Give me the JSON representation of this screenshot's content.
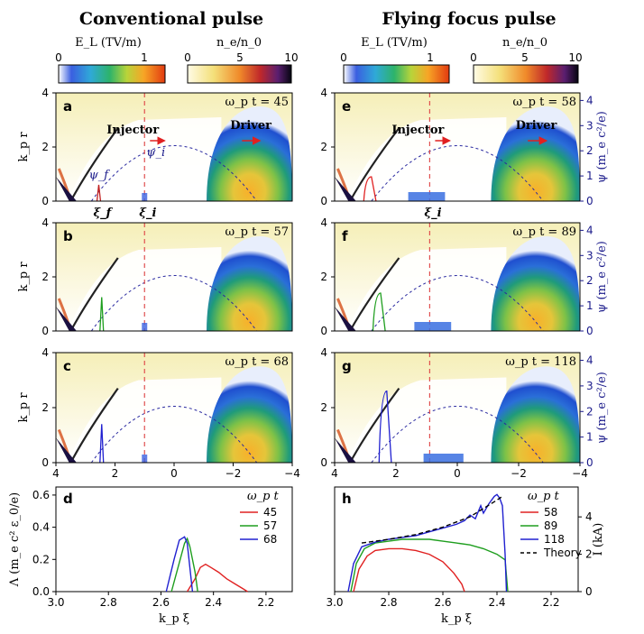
{
  "titles": {
    "left": "Conventional pulse",
    "right": "Flying focus pulse"
  },
  "colorbars": {
    "EL_label": "E_L (TV/m)",
    "ne_label": "n_e/n_0",
    "EL_ticks": [
      "0",
      "1"
    ],
    "ne_ticks": [
      "0",
      "5",
      "10"
    ]
  },
  "map_axes": {
    "ylabel": "k_p r",
    "psi_label": "ψ (m_e c²/e)",
    "yticks": [
      "0",
      "2",
      "4"
    ],
    "psi_ticks": [
      "0",
      "1",
      "2",
      "3",
      "4"
    ],
    "xticks": [
      "4",
      "2",
      "0",
      "−2",
      "−4"
    ]
  },
  "annotations": {
    "injector": "Injector",
    "driver": "Driver",
    "psi_i": "ψ_i",
    "psi_f": "ψ_f",
    "xi_f": "ξ_f",
    "xi_i": "ξ_i"
  },
  "panels": [
    {
      "label": "a",
      "time": "ω_p t = 45"
    },
    {
      "label": "b",
      "time": "ω_p t = 57"
    },
    {
      "label": "c",
      "time": "ω_p t = 68"
    },
    {
      "label": "e",
      "time": "ω_p t = 58"
    },
    {
      "label": "f",
      "time": "ω_p t = 89"
    },
    {
      "label": "g",
      "time": "ω_p t = 118"
    }
  ],
  "chart_data": [
    {
      "type": "line",
      "panel": "d",
      "xlabel": "k_p ξ",
      "ylabel": "Λ (m_e c² ε_0/e)",
      "xlim": [
        3.0,
        2.1
      ],
      "ylim": [
        0,
        0.65
      ],
      "xticks": [
        "3.0",
        "2.8",
        "2.6",
        "2.4",
        "2.2"
      ],
      "yticks": [
        "0.0",
        "0.2",
        "0.4",
        "0.6"
      ],
      "legend_title": "ω_p t",
      "series": [
        {
          "name": "45",
          "color": "#e02020",
          "x": [
            2.5,
            2.47,
            2.45,
            2.43,
            2.41,
            2.38,
            2.35,
            2.32,
            2.29,
            2.27
          ],
          "y": [
            0.0,
            0.08,
            0.15,
            0.17,
            0.15,
            0.12,
            0.08,
            0.05,
            0.02,
            0.0
          ]
        },
        {
          "name": "57",
          "color": "#1e9e1e",
          "x": [
            2.56,
            2.53,
            2.51,
            2.5,
            2.49,
            2.47,
            2.46
          ],
          "y": [
            0.0,
            0.18,
            0.3,
            0.33,
            0.28,
            0.12,
            0.0
          ]
        },
        {
          "name": "68",
          "color": "#2020d0",
          "x": [
            2.58,
            2.55,
            2.53,
            2.51,
            2.5,
            2.49,
            2.48
          ],
          "y": [
            0.0,
            0.2,
            0.32,
            0.34,
            0.3,
            0.15,
            0.0
          ]
        }
      ]
    },
    {
      "type": "line",
      "panel": "h",
      "xlabel": "k_p ξ",
      "ylabel": "I (kA)",
      "xlim": [
        3.0,
        2.1
      ],
      "ylim": [
        0,
        5.6
      ],
      "xticks": [
        "3.0",
        "2.8",
        "2.6",
        "2.4",
        "2.2"
      ],
      "yticks": [
        "0",
        "2",
        "4"
      ],
      "legend_title": "ω_p t",
      "series": [
        {
          "name": "58",
          "color": "#e02020",
          "x": [
            2.93,
            2.91,
            2.88,
            2.85,
            2.8,
            2.75,
            2.7,
            2.65,
            2.6,
            2.56,
            2.53,
            2.52
          ],
          "y": [
            0.0,
            1.2,
            1.9,
            2.2,
            2.3,
            2.3,
            2.2,
            2.0,
            1.6,
            1.0,
            0.4,
            0.0
          ]
        },
        {
          "name": "89",
          "color": "#1e9e1e",
          "x": [
            2.94,
            2.92,
            2.89,
            2.85,
            2.8,
            2.75,
            2.7,
            2.65,
            2.6,
            2.55,
            2.5,
            2.45,
            2.4,
            2.37,
            2.36
          ],
          "y": [
            0.0,
            1.5,
            2.3,
            2.6,
            2.7,
            2.8,
            2.8,
            2.8,
            2.7,
            2.6,
            2.5,
            2.3,
            2.0,
            1.7,
            0.0
          ]
        },
        {
          "name": "118",
          "color": "#2020d0",
          "x": [
            2.95,
            2.93,
            2.9,
            2.85,
            2.8,
            2.75,
            2.7,
            2.65,
            2.6,
            2.55,
            2.52,
            2.5,
            2.48,
            2.46,
            2.45,
            2.43,
            2.41,
            2.4,
            2.39,
            2.38,
            2.37,
            2.365
          ],
          "y": [
            0.0,
            1.5,
            2.4,
            2.65,
            2.8,
            2.9,
            3.0,
            3.2,
            3.4,
            3.6,
            3.8,
            4.1,
            3.9,
            4.6,
            4.2,
            4.7,
            5.1,
            5.2,
            5.0,
            4.6,
            2.0,
            0.0
          ]
        },
        {
          "name": "Theory",
          "color": "#000000",
          "dashed": true,
          "x": [
            2.9,
            2.8,
            2.7,
            2.6,
            2.5,
            2.4,
            2.38
          ],
          "y": [
            2.6,
            2.8,
            3.05,
            3.45,
            4.0,
            4.9,
            5.1
          ]
        }
      ]
    }
  ]
}
